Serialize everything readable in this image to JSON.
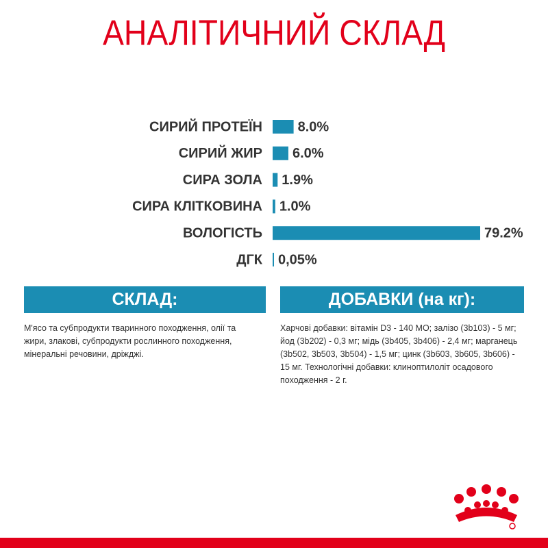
{
  "chart_data": {
    "type": "bar",
    "orientation": "horizontal",
    "title": "АНАЛІТИЧНИЙ СКЛАД",
    "categories": [
      "СИРИЙ ПРОТЕЇН",
      "СИРИЙ ЖИР",
      "СИРА ЗОЛА",
      "СИРА КЛІТКОВИНА",
      "ВОЛОГІСТЬ",
      "ДГК"
    ],
    "values": [
      8.0,
      6.0,
      1.9,
      1.0,
      79.2,
      0.05
    ],
    "value_labels": [
      "8.0%",
      "6.0%",
      "1.9%",
      "1.0%",
      "79.2%",
      "0,05%"
    ],
    "color": "#1b8db3"
  },
  "sections": [
    {
      "heading": "СКЛАД:",
      "text": "М'ясо та субпродукти тваринного походження, олії та жири, злакові, субпродукти рослинного походження, мінеральні речовини, дріжджі."
    },
    {
      "heading": "ДОБАВКИ (на кг):",
      "text": "Харчові добавки: вітамін D3 - 140 МО; залізо (3b103) - 5 мг; йод (3b202) - 0,3 мг; мідь (3b405, 3b406) - 2,4 мг; марганець (3b502, 3b503, 3b504) - 1,5 мг; цинк (3b603, 3b605, 3b606) - 15 мг. Технологічні добавки: клиноптилоліт осадового походження - 2 г."
    }
  ]
}
